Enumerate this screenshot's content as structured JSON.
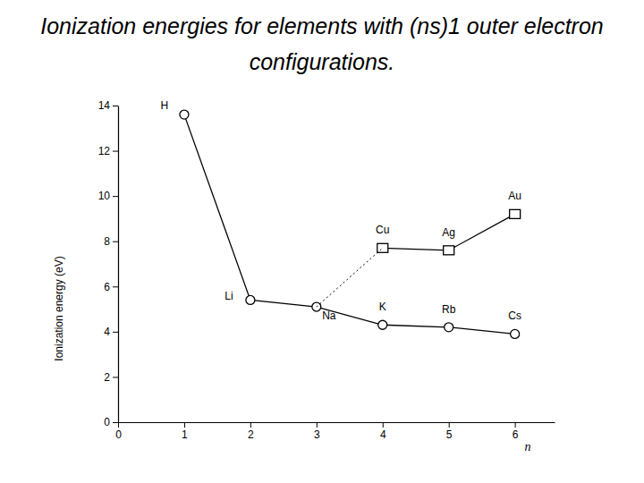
{
  "chart_data": {
    "type": "line",
    "title": "Ionization energies for elements with (ns)1 outer electron configurations.",
    "x_label": "n",
    "y_label": "Ionization energy (eV)",
    "xlim": [
      0,
      6.6
    ],
    "xticks": [
      0,
      1,
      2,
      3,
      4,
      5,
      6
    ],
    "ylim": [
      0,
      14
    ],
    "yticks": [
      0,
      2,
      4,
      6,
      8,
      10,
      12,
      14
    ],
    "grid": false,
    "series": [
      {
        "color": "#000000",
        "marker": "circle",
        "line_style": "solid",
        "x": [
          1,
          2,
          3,
          4,
          5,
          6
        ],
        "values": [
          13.6,
          5.4,
          5.1,
          4.3,
          4.2,
          3.9
        ],
        "labels": [
          "H",
          "Li",
          "Na",
          "K",
          "Rb",
          "Cs"
        ]
      },
      {
        "color": "#000000",
        "marker": "square",
        "line_style": "solid",
        "x": [
          4,
          5,
          6
        ],
        "values": [
          7.7,
          7.6,
          9.2
        ],
        "labels": [
          "Cu",
          "Ag",
          "Au"
        ]
      },
      {
        "color": "#000000",
        "marker": "none",
        "line_style": "dotted",
        "x": [
          3,
          4
        ],
        "values": [
          5.1,
          7.7
        ]
      }
    ]
  }
}
